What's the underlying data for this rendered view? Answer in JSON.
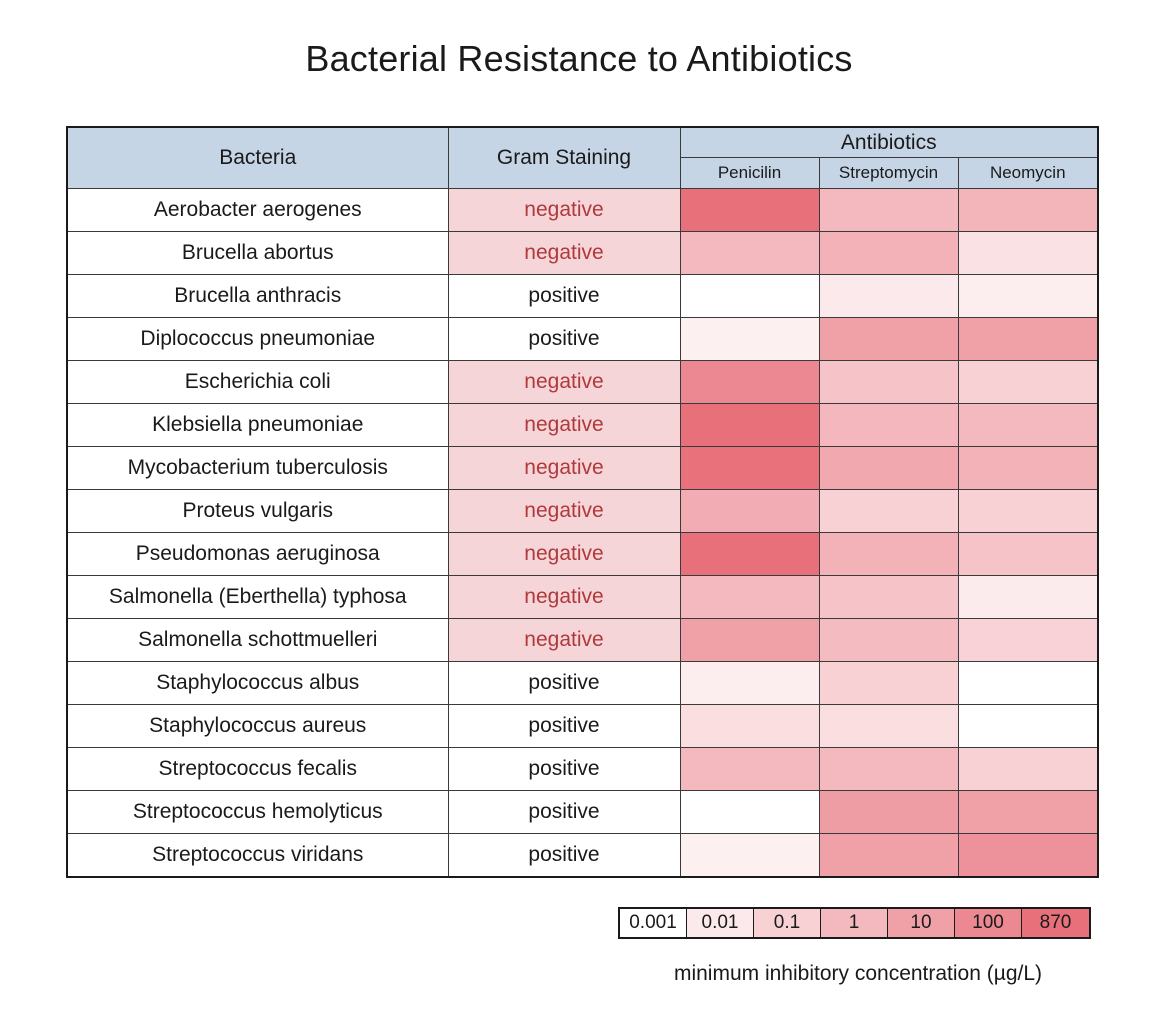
{
  "chart_data": {
    "type": "table",
    "title": "Bacterial Resistance to Antibiotics",
    "headers": {
      "bacteria": "Bacteria",
      "gram": "Gram Staining",
      "group": "Antibiotics",
      "antibiotics": [
        "Penicilin",
        "Streptomycin",
        "Neomycin"
      ]
    },
    "color_scale": {
      "type": "log",
      "min_color": "#ffffff",
      "max_color": "#e8707b",
      "domain": [
        0.001,
        870
      ]
    },
    "gram_colors": {
      "negative_bg": "#f6d5d9",
      "negative_text": "#b0393c",
      "positive_bg": "#ffffff"
    },
    "rows": [
      {
        "bacteria": "Aerobacter aerogenes",
        "gram": "negative",
        "values": [
          870,
          1,
          1.6
        ]
      },
      {
        "bacteria": "Brucella abortus",
        "gram": "negative",
        "values": [
          1,
          2,
          0.02
        ]
      },
      {
        "bacteria": "Brucella anthracis",
        "gram": "positive",
        "values": [
          0.001,
          0.01,
          0.007
        ]
      },
      {
        "bacteria": "Diplococcus pneumoniae",
        "gram": "positive",
        "values": [
          0.005,
          11,
          10
        ]
      },
      {
        "bacteria": "Escherichia coli",
        "gram": "negative",
        "values": [
          100,
          0.4,
          0.1
        ]
      },
      {
        "bacteria": "Klebsiella pneumoniae",
        "gram": "negative",
        "values": [
          850,
          1.2,
          1
        ]
      },
      {
        "bacteria": "Mycobacterium tuberculosis",
        "gram": "negative",
        "values": [
          800,
          5,
          2
        ]
      },
      {
        "bacteria": "Proteus vulgaris",
        "gram": "negative",
        "values": [
          3,
          0.1,
          0.1
        ]
      },
      {
        "bacteria": "Pseudomonas aeruginosa",
        "gram": "negative",
        "values": [
          850,
          2,
          0.4
        ]
      },
      {
        "bacteria": "Salmonella (Eberthella) typhosa",
        "gram": "negative",
        "values": [
          1,
          0.4,
          0.008
        ]
      },
      {
        "bacteria": "Salmonella schottmuelleri",
        "gram": "negative",
        "values": [
          10,
          0.8,
          0.09
        ]
      },
      {
        "bacteria": "Staphylococcus albus",
        "gram": "positive",
        "values": [
          0.007,
          0.1,
          0.001
        ]
      },
      {
        "bacteria": "Staphylococcus aureus",
        "gram": "positive",
        "values": [
          0.03,
          0.03,
          0.001
        ]
      },
      {
        "bacteria": "Streptococcus fecalis",
        "gram": "positive",
        "values": [
          1,
          1,
          0.1
        ]
      },
      {
        "bacteria": "Streptococcus hemolyticus",
        "gram": "positive",
        "values": [
          0.001,
          14,
          10
        ]
      },
      {
        "bacteria": "Streptococcus viridans",
        "gram": "positive",
        "values": [
          0.005,
          10,
          40
        ]
      }
    ],
    "legend": {
      "label": "minimum inhibitory concentration (µg/L)",
      "stops": [
        {
          "label": "0.001",
          "value": 0.001
        },
        {
          "label": "0.01",
          "value": 0.01
        },
        {
          "label": "0.1",
          "value": 0.1
        },
        {
          "label": "1",
          "value": 1
        },
        {
          "label": "10",
          "value": 10
        },
        {
          "label": "100",
          "value": 100
        },
        {
          "label": "870",
          "value": 870
        }
      ]
    }
  }
}
